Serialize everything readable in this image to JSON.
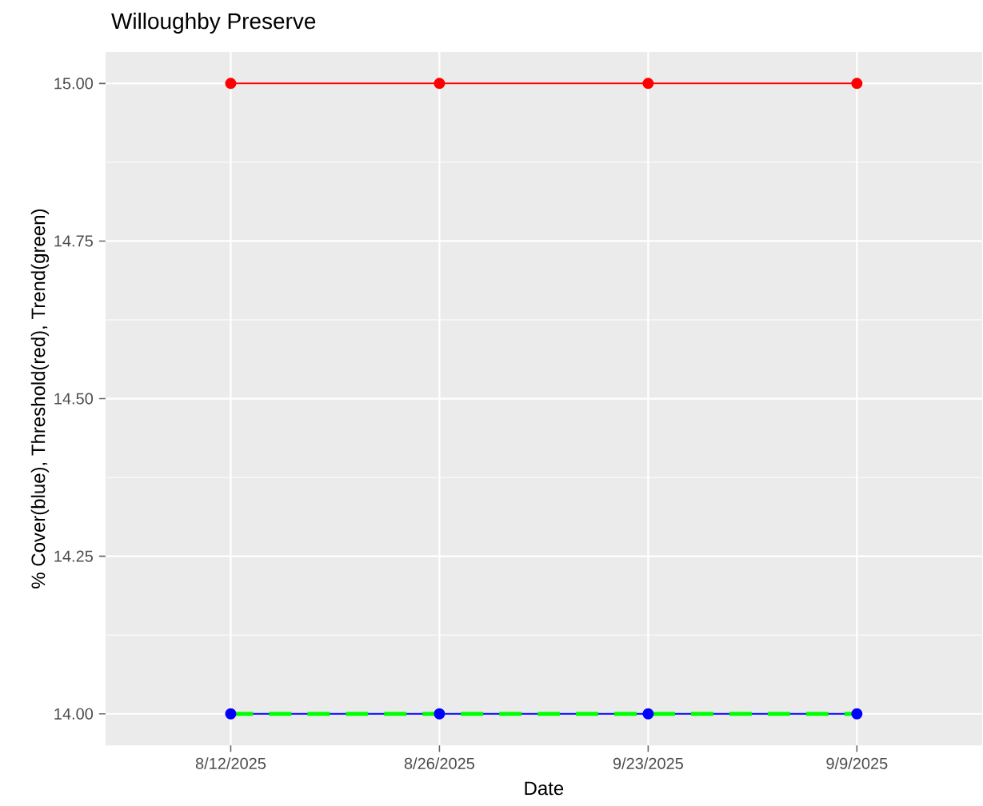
{
  "chart_data": {
    "type": "line",
    "title": "Willoughby Preserve",
    "xlabel": "Date",
    "ylabel": "% Cover(blue), Threshold(red), Trend(green)",
    "categories": [
      "8/12/2025",
      "8/26/2025",
      "9/23/2025",
      "9/9/2025"
    ],
    "series": [
      {
        "color": "#0000ff",
        "values": [
          14.0,
          14.0,
          14.0,
          14.0
        ]
      },
      {
        "color": "#ff0000",
        "values": [
          15.0,
          15.0,
          15.0,
          15.0
        ]
      },
      {
        "color": "#00ff00",
        "values": [
          14.0,
          14.0,
          14.0,
          14.0
        ],
        "marker": "none",
        "line_style": "dashed"
      }
    ],
    "ylim": [
      13.95,
      15.05
    ],
    "yticks": [
      {
        "value": 14.0,
        "label": "14.00"
      },
      {
        "value": 14.25,
        "label": "14.25"
      },
      {
        "value": 14.5,
        "label": "14.50"
      },
      {
        "value": 14.75,
        "label": "14.75"
      },
      {
        "value": 15.0,
        "label": "15.00"
      }
    ],
    "grid": true,
    "marker": "circle",
    "line_style": "solid"
  }
}
